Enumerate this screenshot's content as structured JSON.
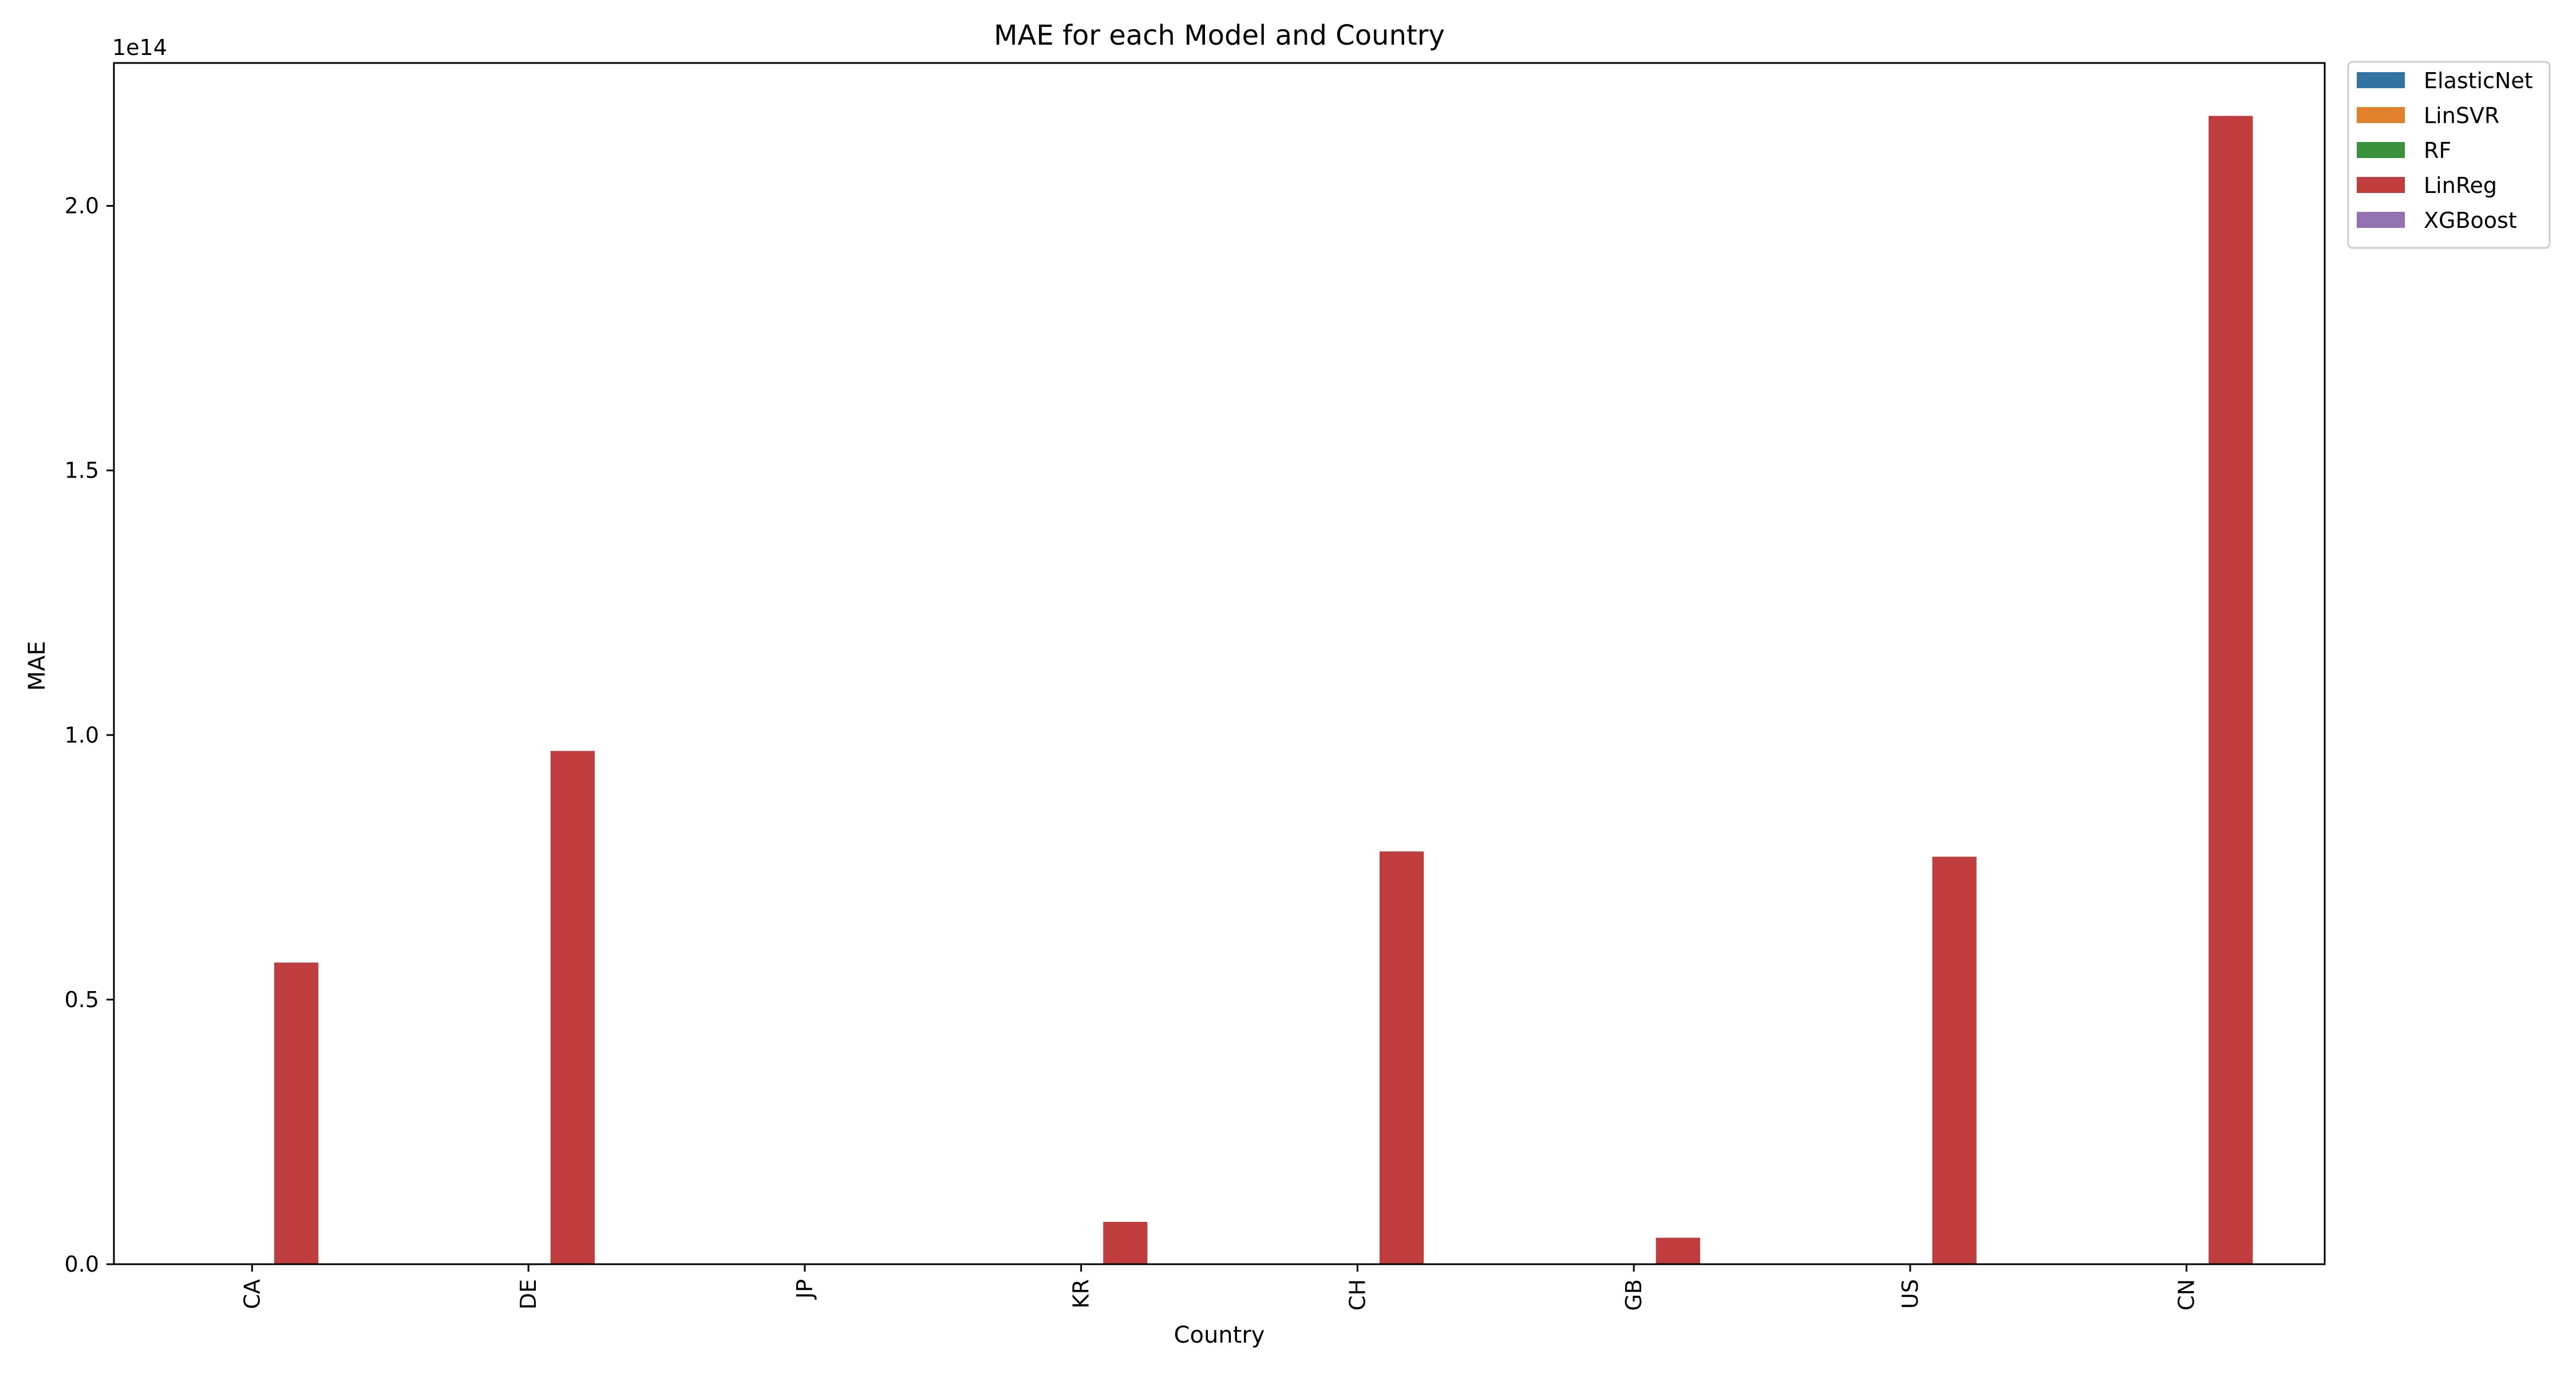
{
  "chart_data": {
    "type": "bar",
    "title": "MAE for each Model and Country",
    "xlabel": "Country",
    "ylabel": "MAE",
    "y_scale_label": "1e14",
    "ylim": [
      0,
      2.27
    ],
    "y_ticks": [
      0.0,
      0.5,
      1.0,
      1.5,
      2.0
    ],
    "y_tick_labels": [
      "0.0",
      "0.5",
      "1.0",
      "1.5",
      "2.0"
    ],
    "categories": [
      "CA",
      "DE",
      "JP",
      "KR",
      "CH",
      "GB",
      "US",
      "CN"
    ],
    "series": [
      {
        "name": "ElasticNet",
        "color": "#3274a1",
        "values": [
          0,
          0,
          0,
          0,
          0,
          0,
          0,
          0
        ]
      },
      {
        "name": "LinSVR",
        "color": "#e1812c",
        "values": [
          0,
          0,
          0,
          0,
          0,
          0,
          0,
          0
        ]
      },
      {
        "name": "RF",
        "color": "#3a923a",
        "values": [
          0,
          0,
          0,
          0,
          0,
          0,
          0,
          0
        ]
      },
      {
        "name": "LinReg",
        "color": "#c03d3e",
        "values": [
          0.57,
          0.97,
          0,
          0.08,
          0.78,
          0.05,
          0.77,
          2.17
        ]
      },
      {
        "name": "XGBoost",
        "color": "#9372b2",
        "values": [
          0,
          0,
          0,
          0,
          0,
          0,
          0,
          0
        ]
      }
    ],
    "grid": false,
    "legend_position": "outside-top-right"
  }
}
